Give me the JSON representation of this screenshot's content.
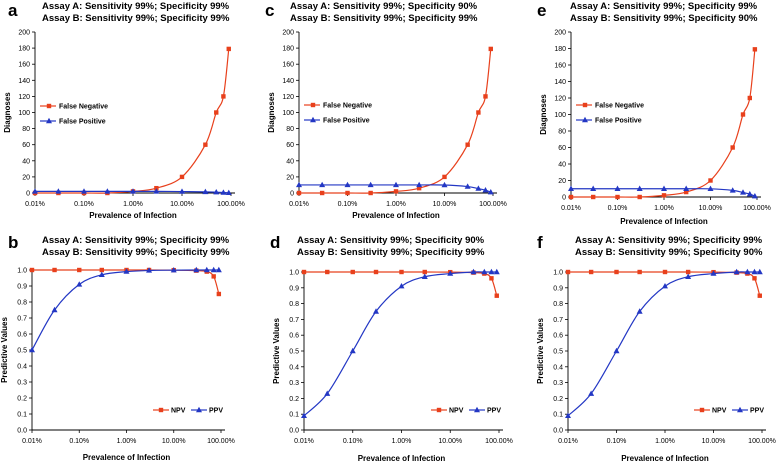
{
  "colors": {
    "red": "#e8401c",
    "blue": "#2337c4",
    "axis": "#000000",
    "bg": "#ffffff"
  },
  "chart_data": [
    {
      "type": "line",
      "panel": "a",
      "kind": "diagnoses",
      "title_lines": [
        "Assay A:  Sensitivity 99%;   Specificity 99%",
        "Assay B:  Sensitivity 99%;   Specificity 99%"
      ],
      "x": [
        0.01,
        0.03,
        0.1,
        0.3,
        1,
        3,
        10,
        30,
        50,
        70,
        90
      ],
      "x_tick_labels": [
        "0.01%",
        "0.10%",
        "1.00%",
        "10.00%",
        "100.00%"
      ],
      "xlabel": "Prevalence of Infection",
      "ylabel": "Diagnoses",
      "ylim": [
        0,
        200
      ],
      "y_ticks": [
        0,
        20,
        40,
        60,
        80,
        100,
        120,
        140,
        160,
        180,
        200
      ],
      "legend_position": "left",
      "series": [
        {
          "name": "False Negative",
          "color": "red",
          "marker": "square",
          "values": [
            0,
            0,
            0,
            0,
            2,
            6,
            20,
            60,
            100,
            120,
            179
          ]
        },
        {
          "name": "False Positive",
          "color": "blue",
          "marker": "triangle",
          "values": [
            2,
            2,
            2,
            2,
            2,
            2,
            1.8,
            1.4,
            1,
            0.6,
            0.2
          ]
        }
      ]
    },
    {
      "type": "line",
      "panel": "c",
      "kind": "diagnoses",
      "title_lines": [
        "Assay A:  Sensitivity 99%;   Specificity 90%",
        "Assay B:  Sensitivity 99%;   Specificity 99%"
      ],
      "x": [
        0.01,
        0.03,
        0.1,
        0.3,
        1,
        3,
        10,
        30,
        50,
        70,
        90
      ],
      "x_tick_labels": [
        "0.01%",
        "0.10%",
        "1.00%",
        "10.00%",
        "100.00%"
      ],
      "xlabel": "Prevalence of Infection",
      "ylabel": "Diagnoses",
      "ylim": [
        0,
        200
      ],
      "y_ticks": [
        0,
        20,
        40,
        60,
        80,
        100,
        120,
        140,
        160,
        180,
        200
      ],
      "legend_position": "left",
      "series": [
        {
          "name": "False Negative",
          "color": "red",
          "marker": "square",
          "values": [
            0,
            0,
            0,
            0,
            2,
            6,
            20,
            60,
            100,
            120,
            179
          ]
        },
        {
          "name": "False Positive",
          "color": "blue",
          "marker": "triangle",
          "values": [
            10,
            10,
            10,
            10,
            10,
            10,
            9.9,
            8,
            5.5,
            3.5,
            1
          ]
        }
      ]
    },
    {
      "type": "line",
      "panel": "e",
      "kind": "diagnoses",
      "title_lines": [
        "Assay A:  Sensitivity 99%;   Specificity 99%",
        "Assay B:  Sensitivity 99%;   Specificity 90%"
      ],
      "x": [
        0.01,
        0.03,
        0.1,
        0.3,
        1,
        3,
        10,
        30,
        50,
        70,
        90
      ],
      "x_tick_labels": [
        "0.01%",
        "0.10%",
        "1.00%",
        "10.00%",
        "100.00%"
      ],
      "xlabel": "Prevalence of Infection",
      "ylabel": "Diagnoses",
      "ylim": [
        0,
        200
      ],
      "y_ticks": [
        0,
        20,
        40,
        60,
        80,
        100,
        120,
        140,
        160,
        180,
        200
      ],
      "legend_position": "left",
      "series": [
        {
          "name": "False Negative",
          "color": "red",
          "marker": "square",
          "values": [
            0,
            0,
            0,
            0,
            2,
            6,
            20,
            60,
            100,
            120,
            179
          ]
        },
        {
          "name": "False Positive",
          "color": "blue",
          "marker": "triangle",
          "values": [
            10,
            10,
            10,
            10,
            10,
            10,
            9.9,
            8,
            5.5,
            3.5,
            1
          ]
        }
      ]
    },
    {
      "type": "line",
      "panel": "b",
      "kind": "predictive",
      "title_lines": [
        "Assay A:  Sensitivity 99%;   Specificity 99%",
        "Assay B:  Sensitivity 99%;   Specificity 99%"
      ],
      "x": [
        0.01,
        0.03,
        0.1,
        0.3,
        1,
        3,
        10,
        30,
        50,
        70,
        90
      ],
      "x_tick_labels": [
        "0.01%",
        "0.10%",
        "1.00%",
        "10.00%",
        "100.00%"
      ],
      "xlabel": "Prevalence of Infection",
      "ylabel": "Predictive Values",
      "ylim": [
        0,
        1
      ],
      "y_ticks": [
        "0.0",
        "0.1",
        "0.2",
        "0.3",
        "0.4",
        "0.5",
        "0.6",
        "0.7",
        "0.8",
        "0.9",
        "1.0"
      ],
      "legend_position": "bottom-right",
      "series": [
        {
          "name": "NPV",
          "color": "red",
          "marker": "square",
          "values": [
            1,
            1,
            1,
            1,
            1,
            1,
            0.999,
            0.996,
            0.99,
            0.96,
            0.85
          ]
        },
        {
          "name": "PPV",
          "color": "blue",
          "marker": "triangle",
          "values": [
            0.5,
            0.75,
            0.91,
            0.97,
            0.99,
            0.997,
            0.999,
            1,
            1,
            1,
            1
          ]
        }
      ]
    },
    {
      "type": "line",
      "panel": "d",
      "kind": "predictive",
      "title_lines": [
        "Assay A:  Sensitivity 99%;   Specificity 90%",
        "Assay B:  Sensitivity 99%;   Specificity 99%"
      ],
      "x": [
        0.01,
        0.03,
        0.1,
        0.3,
        1,
        3,
        10,
        30,
        50,
        70,
        90
      ],
      "x_tick_labels": [
        "0.01%",
        "0.10%",
        "1.00%",
        "10.00%",
        "100.00%"
      ],
      "xlabel": "Prevalence of Infection",
      "ylabel": "Predictive Values",
      "ylim": [
        0,
        1
      ],
      "y_ticks": [
        "0.0",
        "0.1",
        "0.2",
        "0.3",
        "0.4",
        "0.5",
        "0.6",
        "0.7",
        "0.8",
        "0.9",
        "1.0"
      ],
      "legend_position": "bottom-right",
      "series": [
        {
          "name": "NPV",
          "color": "red",
          "marker": "square",
          "values": [
            1,
            1,
            1,
            1,
            1,
            1,
            0.999,
            0.996,
            0.99,
            0.96,
            0.85
          ]
        },
        {
          "name": "PPV",
          "color": "blue",
          "marker": "triangle",
          "values": [
            0.09,
            0.23,
            0.5,
            0.75,
            0.91,
            0.97,
            0.99,
            1,
            1,
            1,
            1
          ]
        }
      ]
    },
    {
      "type": "line",
      "panel": "f",
      "kind": "predictive",
      "title_lines": [
        "Assay A:  Sensitivity 99%;   Specificity 99%",
        "Assay B:  Sensitivity 99%;   Specificity 90%"
      ],
      "x": [
        0.01,
        0.03,
        0.1,
        0.3,
        1,
        3,
        10,
        30,
        50,
        70,
        90
      ],
      "x_tick_labels": [
        "0.01%",
        "0.10%",
        "1.00%",
        "10.00%",
        "100.00%"
      ],
      "xlabel": "Prevalence of Infection",
      "ylabel": "Predictive Values",
      "ylim": [
        0,
        1
      ],
      "y_ticks": [
        "0.0",
        "0.1",
        "0.2",
        "0.3",
        "0.4",
        "0.5",
        "0.6",
        "0.7",
        "0.8",
        "0.9",
        "1.0"
      ],
      "legend_position": "bottom-right",
      "series": [
        {
          "name": "NPV",
          "color": "red",
          "marker": "square",
          "values": [
            1,
            1,
            1,
            1,
            1,
            1,
            0.999,
            0.996,
            0.99,
            0.96,
            0.85
          ]
        },
        {
          "name": "PPV",
          "color": "blue",
          "marker": "triangle",
          "values": [
            0.09,
            0.23,
            0.5,
            0.75,
            0.91,
            0.97,
            0.99,
            1,
            1,
            1,
            1
          ]
        }
      ]
    }
  ]
}
